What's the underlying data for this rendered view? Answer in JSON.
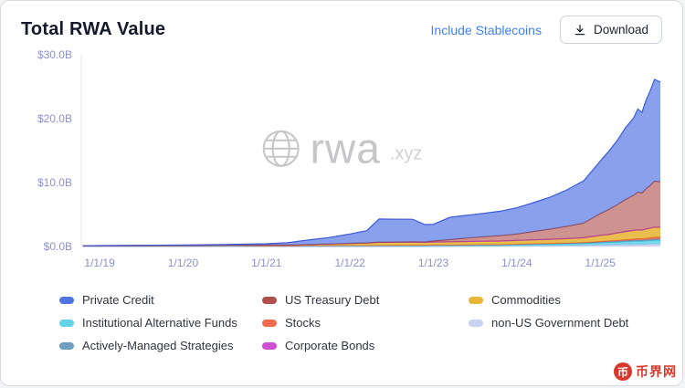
{
  "header": {
    "title": "Total RWA Value",
    "include_stablecoins_label": "Include Stablecoins",
    "download_label": "Download"
  },
  "watermark": {
    "main": "rwa",
    "suffix": ".xyz"
  },
  "colors": {
    "accent_link": "#3b82f6",
    "tick_label": "#8c90d0",
    "watermark_gray": "#c6c6c9",
    "stamp_red": "#d8372b"
  },
  "chart_data": {
    "type": "area",
    "stacked": true,
    "title": "Total RWA Value",
    "xlabel": "",
    "ylabel": "",
    "grid": false,
    "legend_position": "bottom",
    "xlim": [
      2018.78,
      2025.72
    ],
    "ylim": [
      0,
      30
    ],
    "tick_color": "#8c90d0",
    "y_ticks": [
      {
        "value": 0,
        "label": "$0.0B"
      },
      {
        "value": 10,
        "label": "$10.0B"
      },
      {
        "value": 20,
        "label": "$20.0B"
      },
      {
        "value": 30,
        "label": "$30.0B"
      }
    ],
    "x_ticks": [
      {
        "value": 2019,
        "label": "1/1/19"
      },
      {
        "value": 2020,
        "label": "1/1/20"
      },
      {
        "value": 2021,
        "label": "1/1/21"
      },
      {
        "value": 2022,
        "label": "1/1/22"
      },
      {
        "value": 2023,
        "label": "1/1/23"
      },
      {
        "value": 2024,
        "label": "1/1/24"
      },
      {
        "value": 2025,
        "label": "1/1/25"
      }
    ],
    "x": [
      2018.8,
      2019.0,
      2019.5,
      2020.0,
      2020.5,
      2021.0,
      2021.25,
      2021.5,
      2021.75,
      2022.0,
      2022.2,
      2022.35,
      2022.5,
      2022.75,
      2022.9,
      2023.0,
      2023.2,
      2023.4,
      2023.6,
      2023.8,
      2024.0,
      2024.2,
      2024.4,
      2024.6,
      2024.8,
      2025.0,
      2025.1,
      2025.2,
      2025.3,
      2025.4,
      2025.45,
      2025.5,
      2025.55,
      2025.6,
      2025.65,
      2025.72
    ],
    "value_unit": "USD billions",
    "series": [
      {
        "id": "non-us-government-debt",
        "name": "non-US Government Debt",
        "color": "#c9d2f0",
        "line_color": "#b4bfe6",
        "fill_opacity": 0.95,
        "values": [
          0,
          0,
          0,
          0,
          0,
          0,
          0,
          0,
          0,
          0,
          0,
          0,
          0,
          0,
          0,
          0.02,
          0.02,
          0.03,
          0.03,
          0.04,
          0.08,
          0.1,
          0.12,
          0.15,
          0.18,
          0.25,
          0.27,
          0.3,
          0.32,
          0.34,
          0.35,
          0.35,
          0.37,
          0.38,
          0.4,
          0.4
        ]
      },
      {
        "id": "institutional-alternative-funds",
        "name": "Institutional Alternative Funds",
        "color": "#63d4e8",
        "line_color": "#3fc4dc",
        "fill_opacity": 0.9,
        "values": [
          0.08,
          0.1,
          0.12,
          0.13,
          0.14,
          0.12,
          0.12,
          0.13,
          0.14,
          0.15,
          0.15,
          0.16,
          0.16,
          0.17,
          0.17,
          0.18,
          0.18,
          0.19,
          0.2,
          0.2,
          0.22,
          0.24,
          0.26,
          0.28,
          0.3,
          0.35,
          0.38,
          0.4,
          0.45,
          0.48,
          0.5,
          0.5,
          0.52,
          0.55,
          0.58,
          0.6
        ]
      },
      {
        "id": "actively-managed-strategies",
        "name": "Actively-Managed Strategies",
        "color": "#6e9fc1",
        "line_color": "#5a8cb0",
        "fill_opacity": 0.9,
        "values": [
          0,
          0,
          0,
          0.01,
          0.01,
          0.01,
          0.01,
          0.02,
          0.02,
          0.02,
          0.02,
          0.02,
          0.03,
          0.03,
          0.03,
          0.03,
          0.04,
          0.04,
          0.05,
          0.05,
          0.06,
          0.07,
          0.08,
          0.09,
          0.1,
          0.12,
          0.13,
          0.14,
          0.15,
          0.16,
          0.17,
          0.17,
          0.18,
          0.19,
          0.2,
          0.2
        ]
      },
      {
        "id": "stocks",
        "name": "Stocks",
        "color": "#f26b4e",
        "line_color": "#e45835",
        "fill_opacity": 0.9,
        "values": [
          0,
          0,
          0,
          0,
          0,
          0,
          0,
          0.01,
          0.01,
          0.01,
          0.01,
          0.01,
          0.01,
          0.02,
          0.02,
          0.02,
          0.02,
          0.02,
          0.03,
          0.03,
          0.03,
          0.04,
          0.04,
          0.05,
          0.06,
          0.1,
          0.12,
          0.14,
          0.17,
          0.2,
          0.22,
          0.22,
          0.25,
          0.27,
          0.3,
          0.3
        ]
      },
      {
        "id": "commodities",
        "name": "Commodities",
        "color": "#e8b73a",
        "line_color": "#d6a11f",
        "fill_opacity": 0.9,
        "values": [
          0,
          0.01,
          0.02,
          0.03,
          0.05,
          0.1,
          0.12,
          0.15,
          0.22,
          0.3,
          0.35,
          0.45,
          0.45,
          0.45,
          0.42,
          0.45,
          0.46,
          0.48,
          0.5,
          0.52,
          0.55,
          0.58,
          0.6,
          0.65,
          0.7,
          0.9,
          0.95,
          1.1,
          1.2,
          1.3,
          1.32,
          1.3,
          1.38,
          1.45,
          1.5,
          1.5
        ]
      },
      {
        "id": "corporate-bonds",
        "name": "Corporate Bonds",
        "color": "#cf4ed3",
        "line_color": "#bb3cbf",
        "fill_opacity": 0.9,
        "values": [
          0,
          0,
          0,
          0,
          0,
          0,
          0,
          0,
          0.01,
          0.01,
          0.01,
          0.01,
          0.01,
          0.01,
          0.01,
          0.02,
          0.02,
          0.02,
          0.02,
          0.02,
          0.02,
          0.03,
          0.03,
          0.03,
          0.03,
          0.04,
          0.04,
          0.04,
          0.05,
          0.05,
          0.05,
          0.05,
          0.05,
          0.05,
          0.05,
          0.05
        ]
      },
      {
        "id": "us-treasury-debt",
        "name": "US Treasury Debt",
        "color": "#b0504c",
        "line_color": "#9c3f3b",
        "fill_opacity": 0.62,
        "values": [
          0,
          0,
          0,
          0,
          0,
          0,
          0,
          0,
          0,
          0.02,
          0.03,
          0.05,
          0.06,
          0.08,
          0.08,
          0.15,
          0.35,
          0.55,
          0.7,
          0.85,
          1.0,
          1.3,
          1.6,
          1.9,
          2.3,
          3.4,
          3.9,
          4.4,
          5.0,
          5.5,
          5.9,
          5.8,
          6.3,
          6.7,
          7.2,
          7.1
        ]
      },
      {
        "id": "private-credit",
        "name": "Private Credit",
        "color": "#5b7ce6",
        "line_color": "#3a5bd9",
        "fill_opacity": 0.72,
        "values": [
          0.02,
          0.03,
          0.05,
          0.08,
          0.12,
          0.2,
          0.35,
          0.7,
          1.0,
          1.45,
          1.9,
          3.6,
          3.55,
          3.5,
          2.7,
          2.6,
          3.5,
          3.55,
          3.65,
          3.8,
          4.1,
          4.5,
          5.0,
          5.7,
          6.6,
          8.2,
          9.1,
          10.0,
          11.2,
          12.1,
          13.0,
          12.6,
          13.9,
          14.8,
          15.9,
          15.6
        ]
      }
    ]
  },
  "legend": {
    "items": [
      {
        "id": "private-credit",
        "label": "Private Credit",
        "color": "#4f74e3"
      },
      {
        "id": "institutional-alternative-funds",
        "label": "Institutional Alternative Funds",
        "color": "#63d4e8"
      },
      {
        "id": "actively-managed-strategies",
        "label": "Actively-Managed Strategies",
        "color": "#6e9fc1"
      },
      {
        "id": "us-treasury-debt",
        "label": "US Treasury Debt",
        "color": "#b0504c"
      },
      {
        "id": "stocks",
        "label": "Stocks",
        "color": "#f26b4e"
      },
      {
        "id": "corporate-bonds",
        "label": "Corporate Bonds",
        "color": "#cf4ed3"
      },
      {
        "id": "commodities",
        "label": "Commodities",
        "color": "#e8b73a"
      },
      {
        "id": "non-us-government-debt",
        "label": "non-US Government Debt",
        "color": "#c9d2f0"
      }
    ]
  },
  "stamp": {
    "icon_char": "币",
    "text": "币界网"
  }
}
